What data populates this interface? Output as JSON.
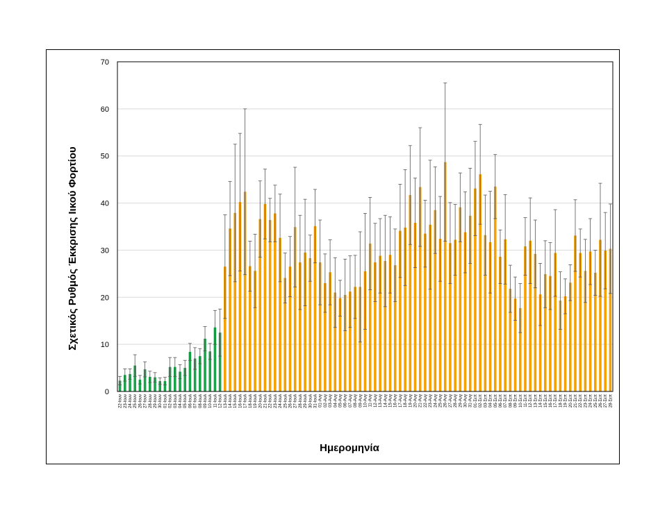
{
  "chart_data": {
    "type": "bar",
    "title": "",
    "xlabel": "Ημερομηνία",
    "ylabel": "Σχετικός Ρυθμός Έκκρισης Ιικού Φορτίου",
    "ylim": [
      0,
      70
    ],
    "yticks": [
      0,
      10,
      20,
      30,
      40,
      50,
      60,
      70
    ],
    "grid": true,
    "legend": "none",
    "colors": {
      "green": "#1aa34a",
      "orange": "#f5a100",
      "grid": "#d9d9d9",
      "errorbar": "#555555"
    },
    "categories": [
      "22-Ιουν",
      "23-Ιουν",
      "24-Ιουν",
      "25-Ιουν",
      "26-Ιουν",
      "27-Ιουν",
      "28-Ιουν",
      "29-Ιουν",
      "30-Ιουν",
      "01-Ιουλ",
      "02-Ιουλ",
      "03-Ιουλ",
      "04-Ιουλ",
      "05-Ιουλ",
      "06-Ιουλ",
      "07-Ιουλ",
      "08-Ιουλ",
      "09-Ιουλ",
      "10-Ιουλ",
      "11-Ιουλ",
      "12-Ιουλ",
      "13-Ιουλ",
      "14-Ιουλ",
      "15-Ιουλ",
      "16-Ιουλ",
      "17-Ιουλ",
      "18-Ιουλ",
      "19-Ιουλ",
      "20-Ιουλ",
      "21-Ιουλ",
      "22-Ιουλ",
      "23-Ιουλ",
      "24-Ιουλ",
      "25-Ιουλ",
      "26-Ιουλ",
      "27-Ιουλ",
      "28-Ιουλ",
      "29-Ιουλ",
      "30-Ιουλ",
      "31-Ιουλ",
      "01-Αυγ",
      "02-Αυγ",
      "03-Αυγ",
      "04-Αυγ",
      "05-Αυγ",
      "06-Αυγ",
      "07-Αυγ",
      "08-Αυγ",
      "09-Αυγ",
      "10-Αυγ",
      "11-Αυγ",
      "12-Αυγ",
      "13-Αυγ",
      "14-Αυγ",
      "15-Αυγ",
      "16-Αυγ",
      "17-Αυγ",
      "18-Αυγ",
      "19-Αυγ",
      "20-Αυγ",
      "21-Αυγ",
      "22-Αυγ",
      "23-Αυγ",
      "24-Αυγ",
      "25-Αυγ",
      "26-Αυγ",
      "27-Αυγ",
      "28-Αυγ",
      "29-Αυγ",
      "30-Αυγ",
      "31-Αυγ",
      "01-Σεπ",
      "02-Σεπ",
      "03-Σεπ",
      "04-Σεπ",
      "05-Σεπ",
      "06-Σεπ",
      "07-Σεπ",
      "08-Σεπ",
      "09-Σεπ",
      "10-Σεπ",
      "11-Σεπ",
      "12-Σεπ",
      "13-Σεπ",
      "14-Σεπ",
      "15-Σεπ",
      "16-Σεπ",
      "17-Σεπ",
      "18-Σεπ",
      "19-Σεπ",
      "20-Σεπ",
      "21-Σεπ",
      "22-Σεπ",
      "23-Σεπ",
      "24-Σεπ",
      "25-Σεπ",
      "26-Σεπ",
      "27-Σεπ",
      "28-Σεπ"
    ],
    "series": [
      {
        "values": [
          2.3,
          3.5,
          3.7,
          5.5,
          2.5,
          4.7,
          3.1,
          3.0,
          2.2,
          2.2,
          5.2,
          5.2,
          4.2,
          5.0,
          8.4,
          7.0,
          7.5,
          11.2,
          8.5,
          13.6,
          12.5,
          26.5,
          34.6,
          37.9,
          40.2,
          42.4,
          26.6,
          25.6,
          36.6,
          39.8,
          36.4,
          37.8,
          32.6,
          24.1,
          26.5,
          34.9,
          27.4,
          29.5,
          28.3,
          35.1,
          27.4,
          23.0,
          25.3,
          21.0,
          19.8,
          20.5,
          21.2,
          22.2,
          22.2,
          25.5,
          31.4,
          27.4,
          28.8,
          27.7,
          29.0,
          26.8,
          34.1,
          34.8,
          41.7,
          35.8,
          43.4,
          33.5,
          35.4,
          38.5,
          32.4,
          48.7,
          31.5,
          32.2,
          39.1,
          33.8,
          37.3,
          43.1,
          46.1,
          33.2,
          31.7,
          43.5,
          28.6,
          32.3,
          21.8,
          19.7,
          17.7,
          30.8,
          32.0,
          29.2,
          20.6,
          24.9,
          24.5,
          29.4,
          19.3,
          20.2,
          23.1,
          33.1,
          29.4,
          25.6,
          29.7,
          25.2,
          32.2,
          29.9,
          30.3
        ],
        "err": [
          0.9,
          1.3,
          1.1,
          2.3,
          0.9,
          1.6,
          1.2,
          1.0,
          0.7,
          0.8,
          2.0,
          2.0,
          1.5,
          1.6,
          1.8,
          2.3,
          1.6,
          2.6,
          1.7,
          3.6,
          5.0,
          11.0,
          10.0,
          14.6,
          14.6,
          17.6,
          5.3,
          7.8,
          8.1,
          7.4,
          4.6,
          6.0,
          9.3,
          5.3,
          6.4,
          12.7,
          10.0,
          11.3,
          4.9,
          7.8,
          9.0,
          6.2,
          6.9,
          7.4,
          3.8,
          7.6,
          7.6,
          6.7,
          11.7,
          12.3,
          9.8,
          8.3,
          7.9,
          9.7,
          8.1,
          7.7,
          9.9,
          12.3,
          10.5,
          9.5,
          12.6,
          7.1,
          13.7,
          9.2,
          9.0,
          16.8,
          8.6,
          7.5,
          7.3,
          8.6,
          10.1,
          10.0,
          10.6,
          8.5,
          10.8,
          6.8,
          5.7,
          9.5,
          5.0,
          4.6,
          5.2,
          6.1,
          9.1,
          7.2,
          6.6,
          7.1,
          7.1,
          9.2,
          6.1,
          3.7,
          3.8,
          7.6,
          5.1,
          6.7,
          7.0,
          4.8,
          12.0,
          8.1,
          9.5
        ]
      }
    ],
    "green_count": 21
  }
}
